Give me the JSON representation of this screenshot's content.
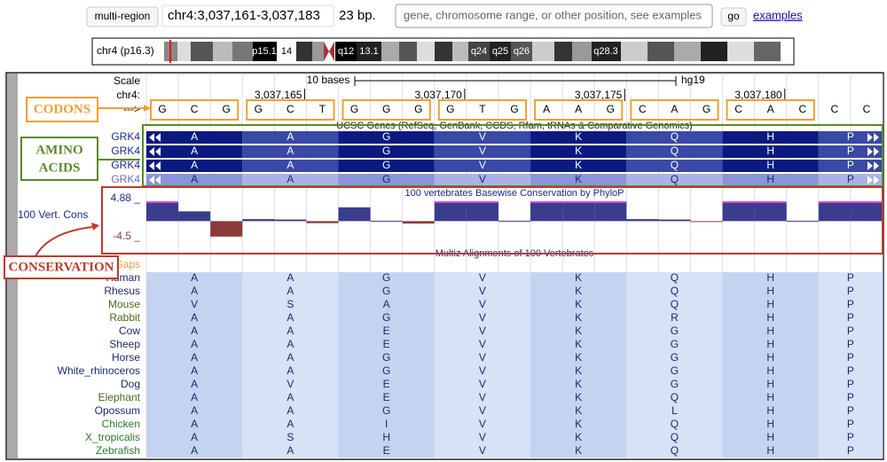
{
  "toolbar": {
    "multi_region": "multi-region",
    "position": "chr4:3,037,161-3,037,183",
    "size": "23 bp.",
    "search_placeholder": "gene, chromosome range, or other position, see examples",
    "go": "go",
    "examples": "examples"
  },
  "ideogram": {
    "label": "chr4 (p16.3)",
    "bands": [
      "p15.1",
      "14",
      "q12",
      "13.1",
      "q24",
      "q25",
      "q26",
      "q28.3"
    ]
  },
  "ruler": {
    "scale": "Scale",
    "span": "10 bases",
    "assembly": "hg19",
    "chrom": "chr4:",
    "strand": "--->",
    "positions": [
      "3,037,165",
      "3,037,170",
      "3,037,175",
      "3,037,180"
    ]
  },
  "bases": [
    "G",
    "C",
    "G",
    "G",
    "C",
    "T",
    "G",
    "G",
    "G",
    "G",
    "T",
    "G",
    "A",
    "A",
    "G",
    "C",
    "A",
    "G",
    "C",
    "A",
    "C",
    "C",
    "C"
  ],
  "genes": {
    "title": "UCSC Genes (RefSeq, GenBank, CCDS, Rfam, tRNAs & Comparative Genomics)",
    "rows": [
      {
        "name": "GRK4",
        "aminos": [
          "A",
          "A",
          "G",
          "V",
          "K",
          "Q",
          "H",
          "P"
        ]
      },
      {
        "name": "GRK4",
        "aminos": [
          "A",
          "A",
          "G",
          "V",
          "K",
          "Q",
          "H",
          "P"
        ]
      },
      {
        "name": "GRK4",
        "aminos": [
          "A",
          "A",
          "G",
          "V",
          "K",
          "Q",
          "H",
          "P"
        ]
      },
      {
        "name": "GRK4",
        "aminos": [
          "A",
          "A",
          "G",
          "V",
          "K",
          "Q",
          "H",
          "P"
        ]
      }
    ]
  },
  "conservation": {
    "title": "100 vertebrates Basewise Conservation by PhyloP",
    "label": "100 Vert. Cons",
    "ylim": [
      -4.5,
      4.88
    ],
    "yticks": [
      {
        "value": 4.88,
        "label": "4.88 _"
      },
      {
        "value": -4.5,
        "label": "-4.5 _"
      }
    ],
    "values": [
      4.88,
      2.4,
      -3.8,
      0.5,
      0.4,
      -0.5,
      3.4,
      0.1,
      -0.6,
      4.88,
      4.88,
      0.1,
      4.88,
      4.88,
      4.88,
      0.5,
      0.4,
      -0.1,
      4.88,
      4.88,
      0.1,
      4.88,
      4.88
    ]
  },
  "alignment": {
    "title": "Multiz Alignments of 100 Vertebrates",
    "gaps": "Gaps",
    "rows": [
      {
        "species": "Human",
        "color": "#1a2a6c",
        "aminos": [
          "A",
          "A",
          "G",
          "V",
          "K",
          "Q",
          "H",
          "P"
        ]
      },
      {
        "species": "Rhesus",
        "color": "#1a2a6c",
        "aminos": [
          "A",
          "A",
          "G",
          "V",
          "K",
          "Q",
          "H",
          "P"
        ]
      },
      {
        "species": "Mouse",
        "color": "#4a6a1a",
        "aminos": [
          "V",
          "S",
          "A",
          "V",
          "K",
          "Q",
          "H",
          "P"
        ]
      },
      {
        "species": "Rabbit",
        "color": "#4a6a1a",
        "aminos": [
          "A",
          "A",
          "G",
          "V",
          "K",
          "R",
          "H",
          "P"
        ]
      },
      {
        "species": "Cow",
        "color": "#1a2a6c",
        "aminos": [
          "A",
          "A",
          "E",
          "V",
          "K",
          "G",
          "H",
          "P"
        ]
      },
      {
        "species": "Sheep",
        "color": "#1a2a6c",
        "aminos": [
          "A",
          "A",
          "E",
          "V",
          "K",
          "G",
          "H",
          "P"
        ]
      },
      {
        "species": "Horse",
        "color": "#1a2a6c",
        "aminos": [
          "A",
          "A",
          "G",
          "V",
          "K",
          "G",
          "H",
          "P"
        ]
      },
      {
        "species": "White_rhinoceros",
        "color": "#1a2a6c",
        "aminos": [
          "A",
          "A",
          "G",
          "V",
          "K",
          "G",
          "H",
          "P"
        ]
      },
      {
        "species": "Dog",
        "color": "#1a2a6c",
        "aminos": [
          "A",
          "V",
          "E",
          "V",
          "K",
          "G",
          "H",
          "P"
        ]
      },
      {
        "species": "Elephant",
        "color": "#4a6a1a",
        "aminos": [
          "A",
          "A",
          "E",
          "V",
          "K",
          "Q",
          "H",
          "P"
        ]
      },
      {
        "species": "Opossum",
        "color": "#1a2a6c",
        "aminos": [
          "A",
          "A",
          "G",
          "V",
          "K",
          "L",
          "H",
          "P"
        ]
      },
      {
        "species": "Chicken",
        "color": "#2a7a2a",
        "aminos": [
          "A",
          "A",
          "I",
          "V",
          "K",
          "Q",
          "H",
          "P"
        ]
      },
      {
        "species": "X_tropicalis",
        "color": "#2a7a2a",
        "aminos": [
          "A",
          "S",
          "H",
          "V",
          "K",
          "Q",
          "H",
          "P"
        ]
      },
      {
        "species": "Zebrafish",
        "color": "#2a7a2a",
        "aminos": [
          "A",
          "A",
          "E",
          "V",
          "K",
          "Q",
          "H",
          "P"
        ]
      }
    ]
  },
  "annotations": {
    "codons": "CODONS",
    "amino_acids": [
      "AMINO",
      "ACIDS"
    ],
    "conservation": "CONSERVATION"
  }
}
